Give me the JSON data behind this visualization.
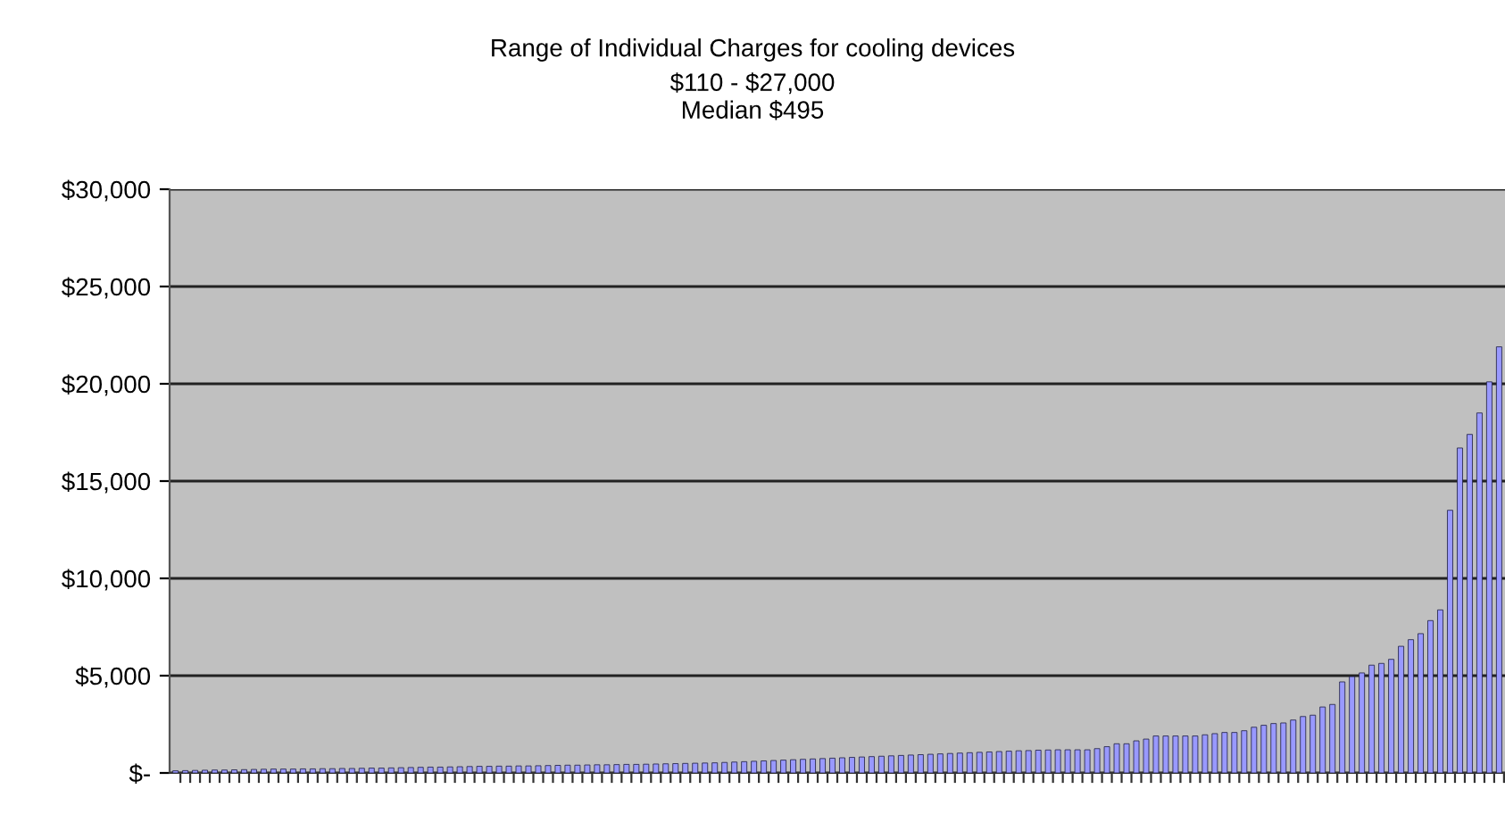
{
  "chart_data": {
    "type": "bar",
    "title": "Range of Individual Charges for cooling devices",
    "subtitle": "$110 - $27,000\nMedian $495",
    "categories": [
      null,
      null,
      null,
      null,
      null,
      null,
      null,
      null,
      null,
      null,
      null,
      null,
      null,
      null,
      null,
      null,
      null,
      null,
      null,
      null,
      null,
      null,
      null,
      null,
      null,
      null,
      null,
      null,
      null,
      null,
      null,
      null,
      null,
      null,
      null,
      null,
      null,
      null,
      null,
      null,
      null,
      null,
      null,
      null,
      null,
      null,
      null,
      null,
      null,
      null,
      null,
      null,
      null,
      null,
      null,
      null,
      null,
      null,
      null,
      null,
      null,
      null,
      null,
      null,
      null,
      null,
      null,
      null,
      null,
      null,
      null,
      null,
      null,
      null,
      null,
      null,
      null,
      null,
      null,
      null,
      null,
      null,
      null,
      null,
      null,
      null,
      null,
      null,
      null,
      null,
      null,
      null,
      null,
      null,
      null,
      null,
      null,
      null,
      null,
      null,
      null,
      null,
      null,
      null,
      null,
      null,
      null,
      null,
      null,
      null,
      null,
      null,
      null,
      null,
      null,
      null,
      null,
      null,
      null,
      null,
      null,
      null,
      null,
      null,
      null,
      null,
      null,
      null,
      null,
      null,
      null,
      null,
      null,
      null,
      null,
      null
    ],
    "values": [
      110,
      120,
      130,
      140,
      150,
      150,
      160,
      170,
      180,
      190,
      200,
      200,
      200,
      210,
      210,
      220,
      220,
      230,
      230,
      240,
      250,
      250,
      260,
      270,
      280,
      290,
      300,
      300,
      310,
      320,
      330,
      340,
      340,
      350,
      350,
      360,
      360,
      370,
      380,
      390,
      400,
      400,
      410,
      420,
      420,
      430,
      440,
      440,
      450,
      460,
      470,
      480,
      490,
      500,
      510,
      520,
      540,
      560,
      580,
      600,
      620,
      640,
      660,
      680,
      700,
      720,
      740,
      760,
      780,
      800,
      820,
      840,
      860,
      880,
      900,
      920,
      940,
      960,
      980,
      1000,
      1020,
      1040,
      1060,
      1080,
      1100,
      1120,
      1140,
      1150,
      1170,
      1180,
      1190,
      1190,
      1190,
      1190,
      1250,
      1350,
      1500,
      1500,
      1650,
      1740,
      1900,
      1900,
      1900,
      1900,
      1900,
      1960,
      2020,
      2080,
      2080,
      2170,
      2350,
      2450,
      2540,
      2570,
      2720,
      2900,
      2970,
      3390,
      3520,
      4680,
      4950,
      5140,
      5540,
      5630,
      5840,
      6510,
      6850,
      7160,
      7830,
      8380,
      13500,
      16700,
      17400,
      18500,
      20100,
      21900
    ],
    "color": "#9999ff",
    "ylim": [
      0,
      30000
    ],
    "yticks": [
      {
        "value": 0,
        "label": "$-"
      },
      {
        "value": 5000,
        "label": "$5,000"
      },
      {
        "value": 10000,
        "label": "$10,000"
      },
      {
        "value": 15000,
        "label": "$15,000"
      },
      {
        "value": 20000,
        "label": "$20,000"
      },
      {
        "value": 25000,
        "label": "$25,000"
      },
      {
        "value": 30000,
        "label": "$30,000"
      }
    ],
    "grid": "y",
    "legend": false
  }
}
